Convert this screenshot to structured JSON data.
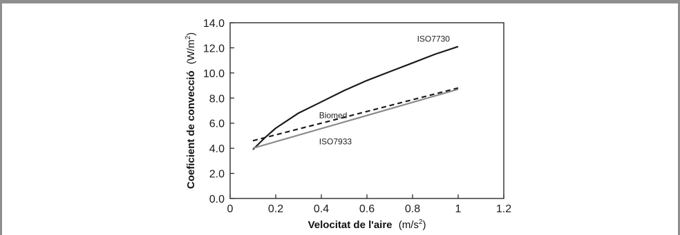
{
  "chart_data": {
    "type": "line",
    "xlabel": {
      "main": "Velocitat de l'aire",
      "unit": "(m/s",
      "sup": "2",
      "close": ")"
    },
    "ylabel": {
      "main": "Coeficient de convecció",
      "unit": "(W/m",
      "sup": "2",
      "close": ")"
    },
    "xlim": [
      0,
      1.2
    ],
    "ylim": [
      0,
      14
    ],
    "xticks": [
      {
        "v": 0,
        "label": "0"
      },
      {
        "v": 0.2,
        "label": "0.2"
      },
      {
        "v": 0.4,
        "label": "0.4"
      },
      {
        "v": 0.6,
        "label": "0.6"
      },
      {
        "v": 0.8,
        "label": "0.8"
      },
      {
        "v": 1.0,
        "label": "1"
      },
      {
        "v": 1.2,
        "label": "1.2"
      }
    ],
    "yticks": [
      {
        "v": 0,
        "label": "0.0"
      },
      {
        "v": 2,
        "label": "2.0"
      },
      {
        "v": 4,
        "label": "4.0"
      },
      {
        "v": 6,
        "label": "6.0"
      },
      {
        "v": 8,
        "label": "8.0"
      },
      {
        "v": 10,
        "label": "10.0"
      },
      {
        "v": 12,
        "label": "12.0"
      },
      {
        "v": 14,
        "label": "14.0"
      }
    ],
    "grid": false,
    "series": [
      {
        "name": "ISO7730",
        "color": "#1a1a1a",
        "dash": "solid",
        "x": [
          0.1,
          0.15,
          0.2,
          0.25,
          0.3,
          0.4,
          0.5,
          0.6,
          0.7,
          0.8,
          0.9,
          1.0
        ],
        "y": [
          3.9,
          4.8,
          5.6,
          6.2,
          6.8,
          7.7,
          8.6,
          9.4,
          10.1,
          10.8,
          11.5,
          12.1
        ]
      },
      {
        "name": "Biomed",
        "color": "#1a1a1a",
        "dash": "dashed",
        "x": [
          0.1,
          1.0
        ],
        "y": [
          4.6,
          8.8
        ]
      },
      {
        "name": "ISO7933",
        "color": "#8a8a8a",
        "dash": "solid",
        "x": [
          0.1,
          1.0
        ],
        "y": [
          4.0,
          8.7
        ]
      }
    ]
  }
}
